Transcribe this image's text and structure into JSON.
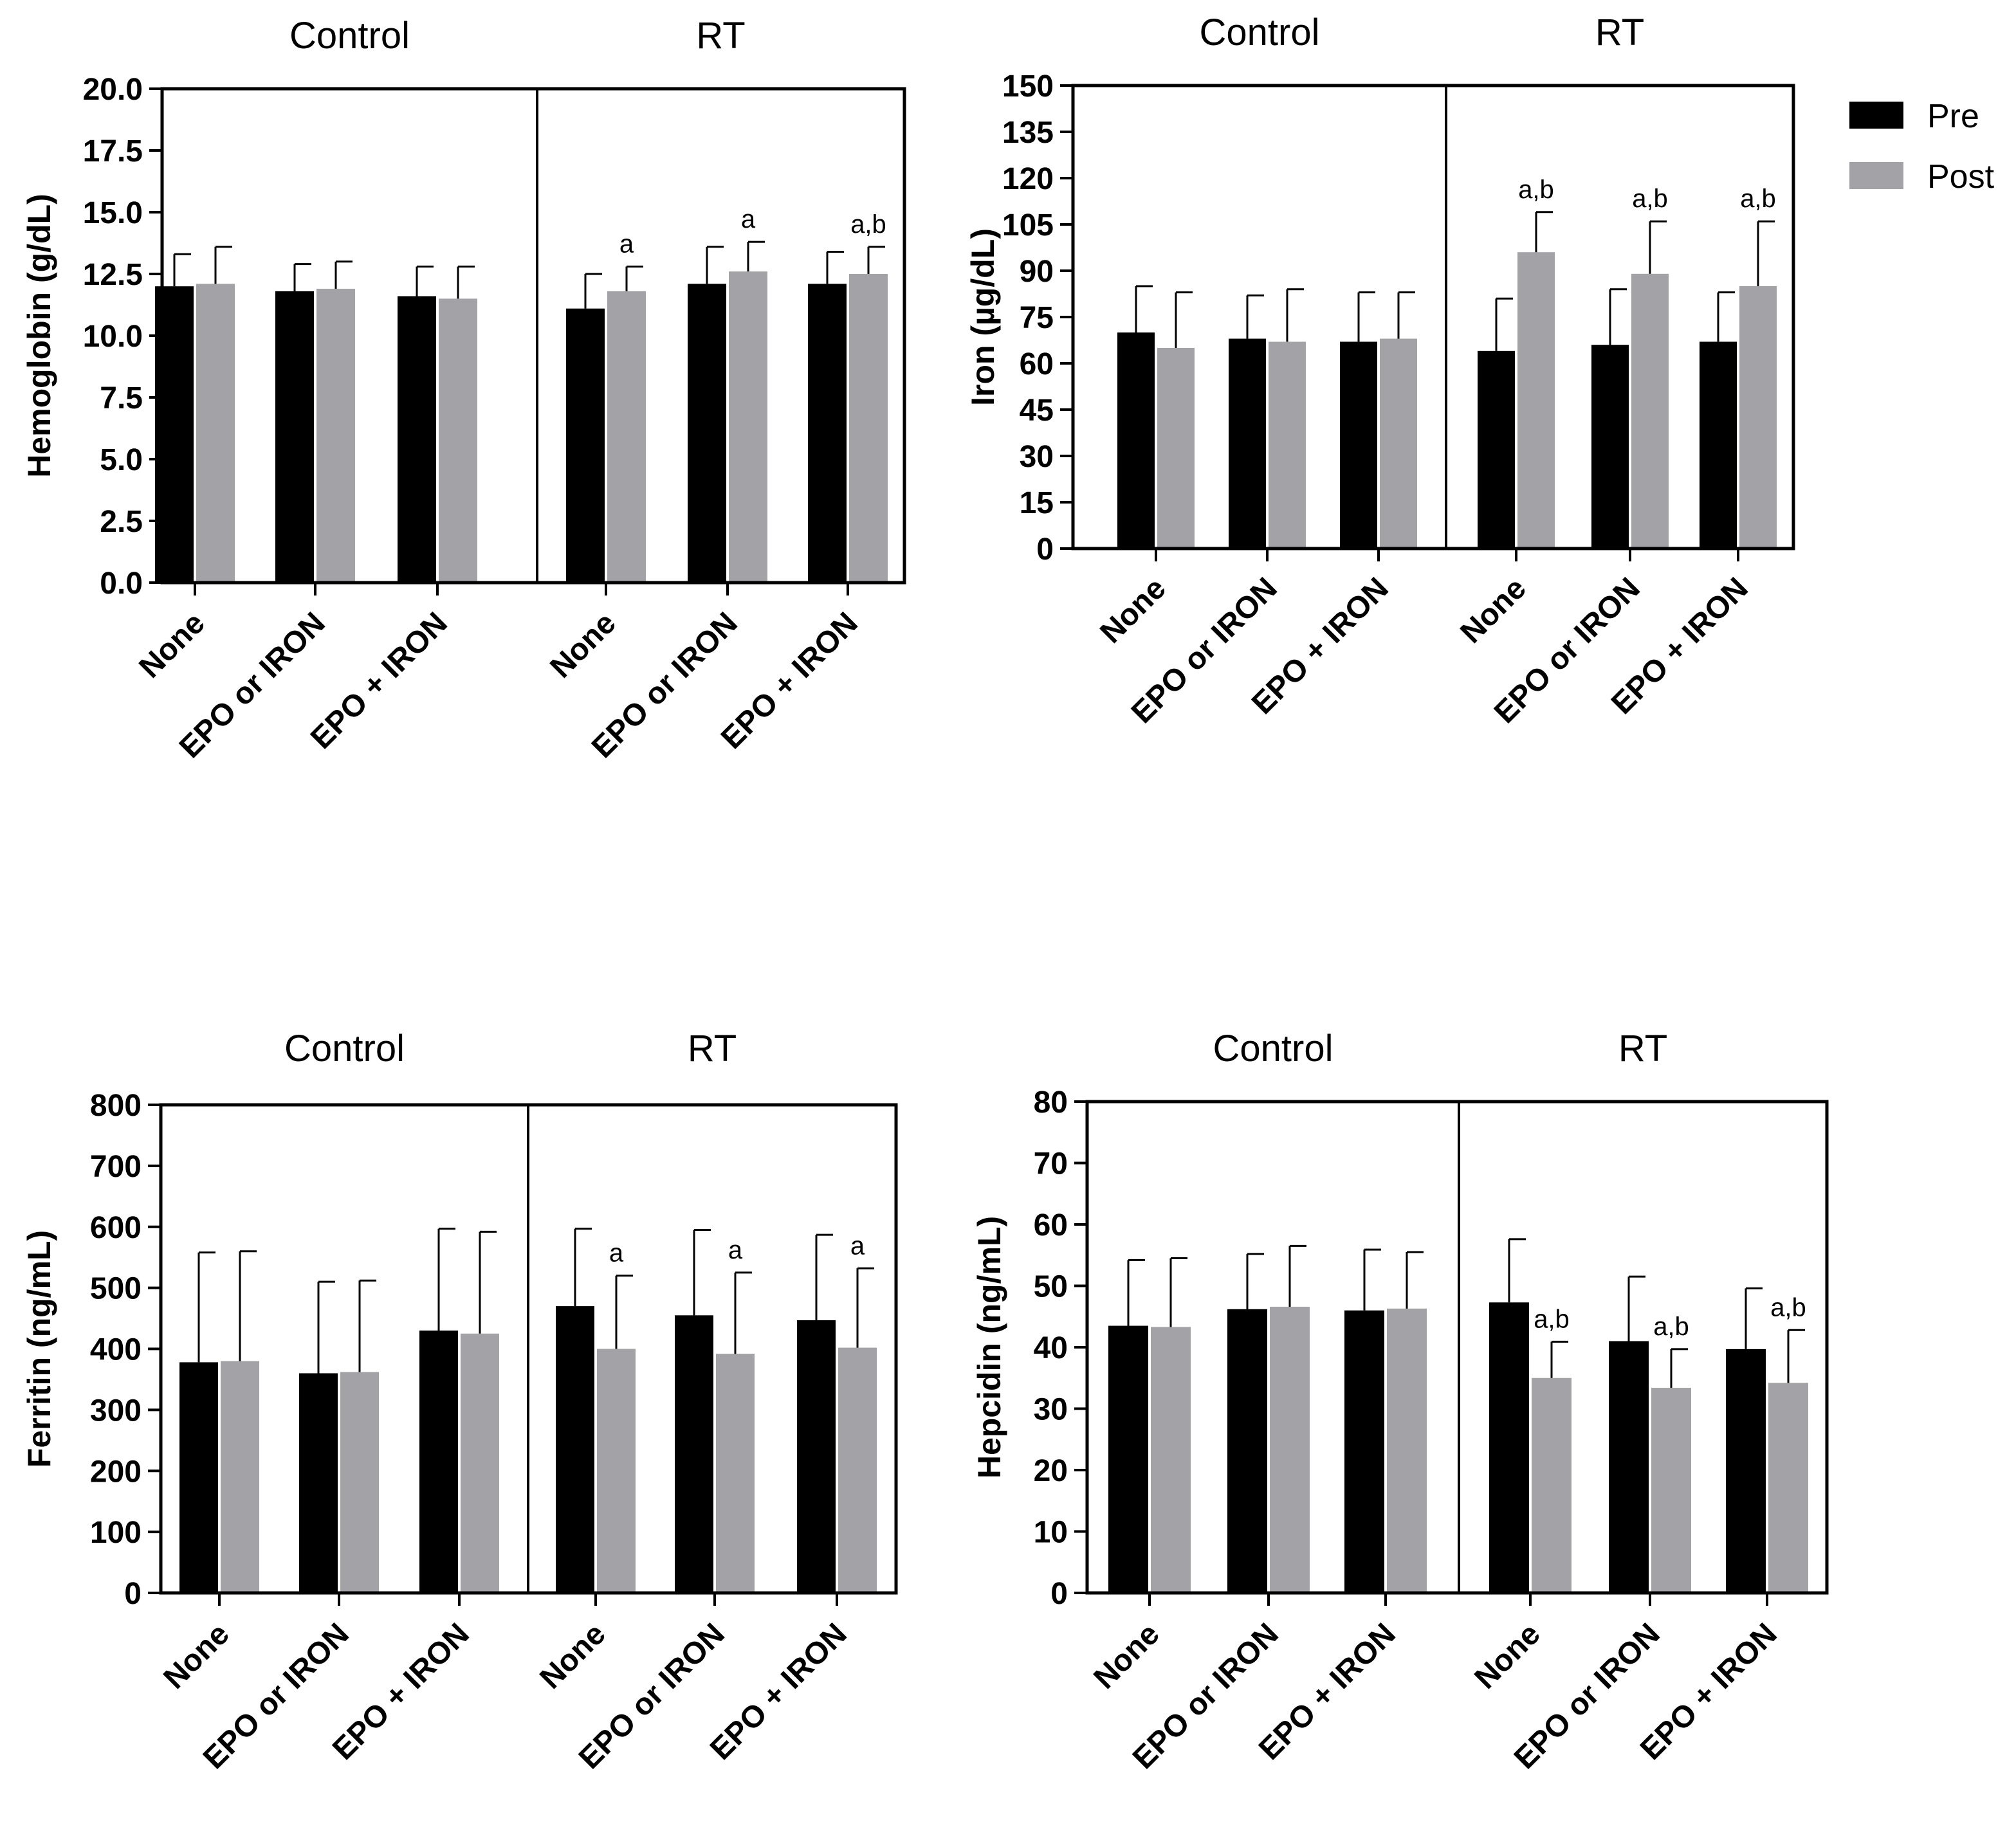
{
  "colors": {
    "pre": "#000000",
    "post": "#a3a3a7",
    "axis": "#000000"
  },
  "legend": [
    {
      "key": "pre",
      "label": "Pre"
    },
    {
      "key": "post",
      "label": "Post"
    }
  ],
  "chart_data": [
    {
      "type": "bar",
      "title": "",
      "ylabel": "Hemoglobin (g/dL)",
      "xlabel": "",
      "ylim": [
        0,
        20
      ],
      "yticks": [
        0,
        2.5,
        5,
        7.5,
        10,
        12.5,
        15,
        17.5,
        20
      ],
      "ytick_labels": [
        "0.0",
        "2.5",
        "5.0",
        "7.5",
        "10.0",
        "12.5",
        "15.0",
        "17.5",
        "20.0"
      ],
      "groups": [
        "Control",
        "RT"
      ],
      "categories": [
        "None",
        "EPO or IRON",
        "EPO + IRON",
        "None",
        "EPO or IRON",
        "EPO + IRON"
      ],
      "series": [
        {
          "name": "Pre",
          "values": [
            12.0,
            11.8,
            11.6,
            11.1,
            12.1,
            12.1
          ],
          "errors": [
            1.3,
            1.1,
            1.2,
            1.4,
            1.5,
            1.3
          ]
        },
        {
          "name": "Post",
          "values": [
            12.1,
            11.9,
            11.5,
            11.8,
            12.6,
            12.5
          ],
          "errors": [
            1.5,
            1.1,
            1.3,
            1.0,
            1.2,
            1.1
          ]
        }
      ],
      "annotations": [
        "",
        "",
        "",
        "a",
        "a",
        "a,b"
      ]
    },
    {
      "type": "bar",
      "title": "",
      "ylabel": "Iron (µg/dL)",
      "xlabel": "",
      "ylim": [
        0,
        150
      ],
      "yticks": [
        0,
        15,
        30,
        45,
        60,
        75,
        90,
        105,
        120,
        135,
        150
      ],
      "ytick_labels": [
        "0",
        "15",
        "30",
        "45",
        "60",
        "75",
        "90",
        "105",
        "120",
        "135",
        "150"
      ],
      "groups": [
        "Control",
        "RT"
      ],
      "categories": [
        "None",
        "EPO or IRON",
        "EPO + IRON",
        "None",
        "EPO or IRON",
        "EPO + IRON"
      ],
      "series": [
        {
          "name": "Pre",
          "values": [
            70,
            68,
            67,
            64,
            66,
            67
          ],
          "errors": [
            15,
            14,
            16,
            17,
            18,
            16
          ]
        },
        {
          "name": "Post",
          "values": [
            65,
            67,
            68,
            96,
            89,
            85
          ],
          "errors": [
            18,
            17,
            15,
            13,
            17,
            21
          ]
        }
      ],
      "annotations": [
        "",
        "",
        "",
        "a,b",
        "a,b",
        "a,b"
      ]
    },
    {
      "type": "bar",
      "title": "",
      "ylabel": "Ferritin (ng/mL)",
      "xlabel": "",
      "ylim": [
        0,
        800
      ],
      "yticks": [
        0,
        100,
        200,
        300,
        400,
        500,
        600,
        700,
        800
      ],
      "ytick_labels": [
        "0",
        "100",
        "200",
        "300",
        "400",
        "500",
        "600",
        "700",
        "800"
      ],
      "groups": [
        "Control",
        "RT"
      ],
      "categories": [
        "None",
        "EPO or IRON",
        "EPO + IRON",
        "None",
        "EPO or IRON",
        "EPO + IRON"
      ],
      "series": [
        {
          "name": "Pre",
          "values": [
            378,
            360,
            430,
            470,
            455,
            447
          ],
          "errors": [
            180,
            150,
            167,
            127,
            140,
            140
          ]
        },
        {
          "name": "Post",
          "values": [
            380,
            362,
            425,
            400,
            392,
            402
          ],
          "errors": [
            180,
            150,
            167,
            120,
            133,
            130
          ]
        }
      ],
      "annotations": [
        "",
        "",
        "",
        "a",
        "a",
        "a"
      ]
    },
    {
      "type": "bar",
      "title": "",
      "ylabel": "Hepcidin (ng/mL)",
      "xlabel": "",
      "ylim": [
        0,
        80
      ],
      "yticks": [
        0,
        10,
        20,
        30,
        40,
        50,
        60,
        70,
        80
      ],
      "ytick_labels": [
        "0",
        "10",
        "20",
        "30",
        "40",
        "50",
        "60",
        "70",
        "80"
      ],
      "groups": [
        "Control",
        "RT"
      ],
      "categories": [
        "None",
        "EPO or IRON",
        "EPO + IRON",
        "None",
        "EPO or IRON",
        "EPO + IRON"
      ],
      "series": [
        {
          "name": "Pre",
          "values": [
            43.5,
            46.2,
            46.0,
            47.3,
            41.0,
            39.7
          ],
          "errors": [
            10.7,
            9.0,
            9.9,
            10.3,
            10.5,
            9.9
          ]
        },
        {
          "name": "Post",
          "values": [
            43.3,
            46.6,
            46.3,
            35.0,
            33.4,
            34.2
          ],
          "errors": [
            11.2,
            9.9,
            9.2,
            5.9,
            6.3,
            8.6
          ]
        }
      ],
      "annotations": [
        "",
        "",
        "",
        "a,b",
        "a,b",
        "a,b"
      ]
    }
  ]
}
